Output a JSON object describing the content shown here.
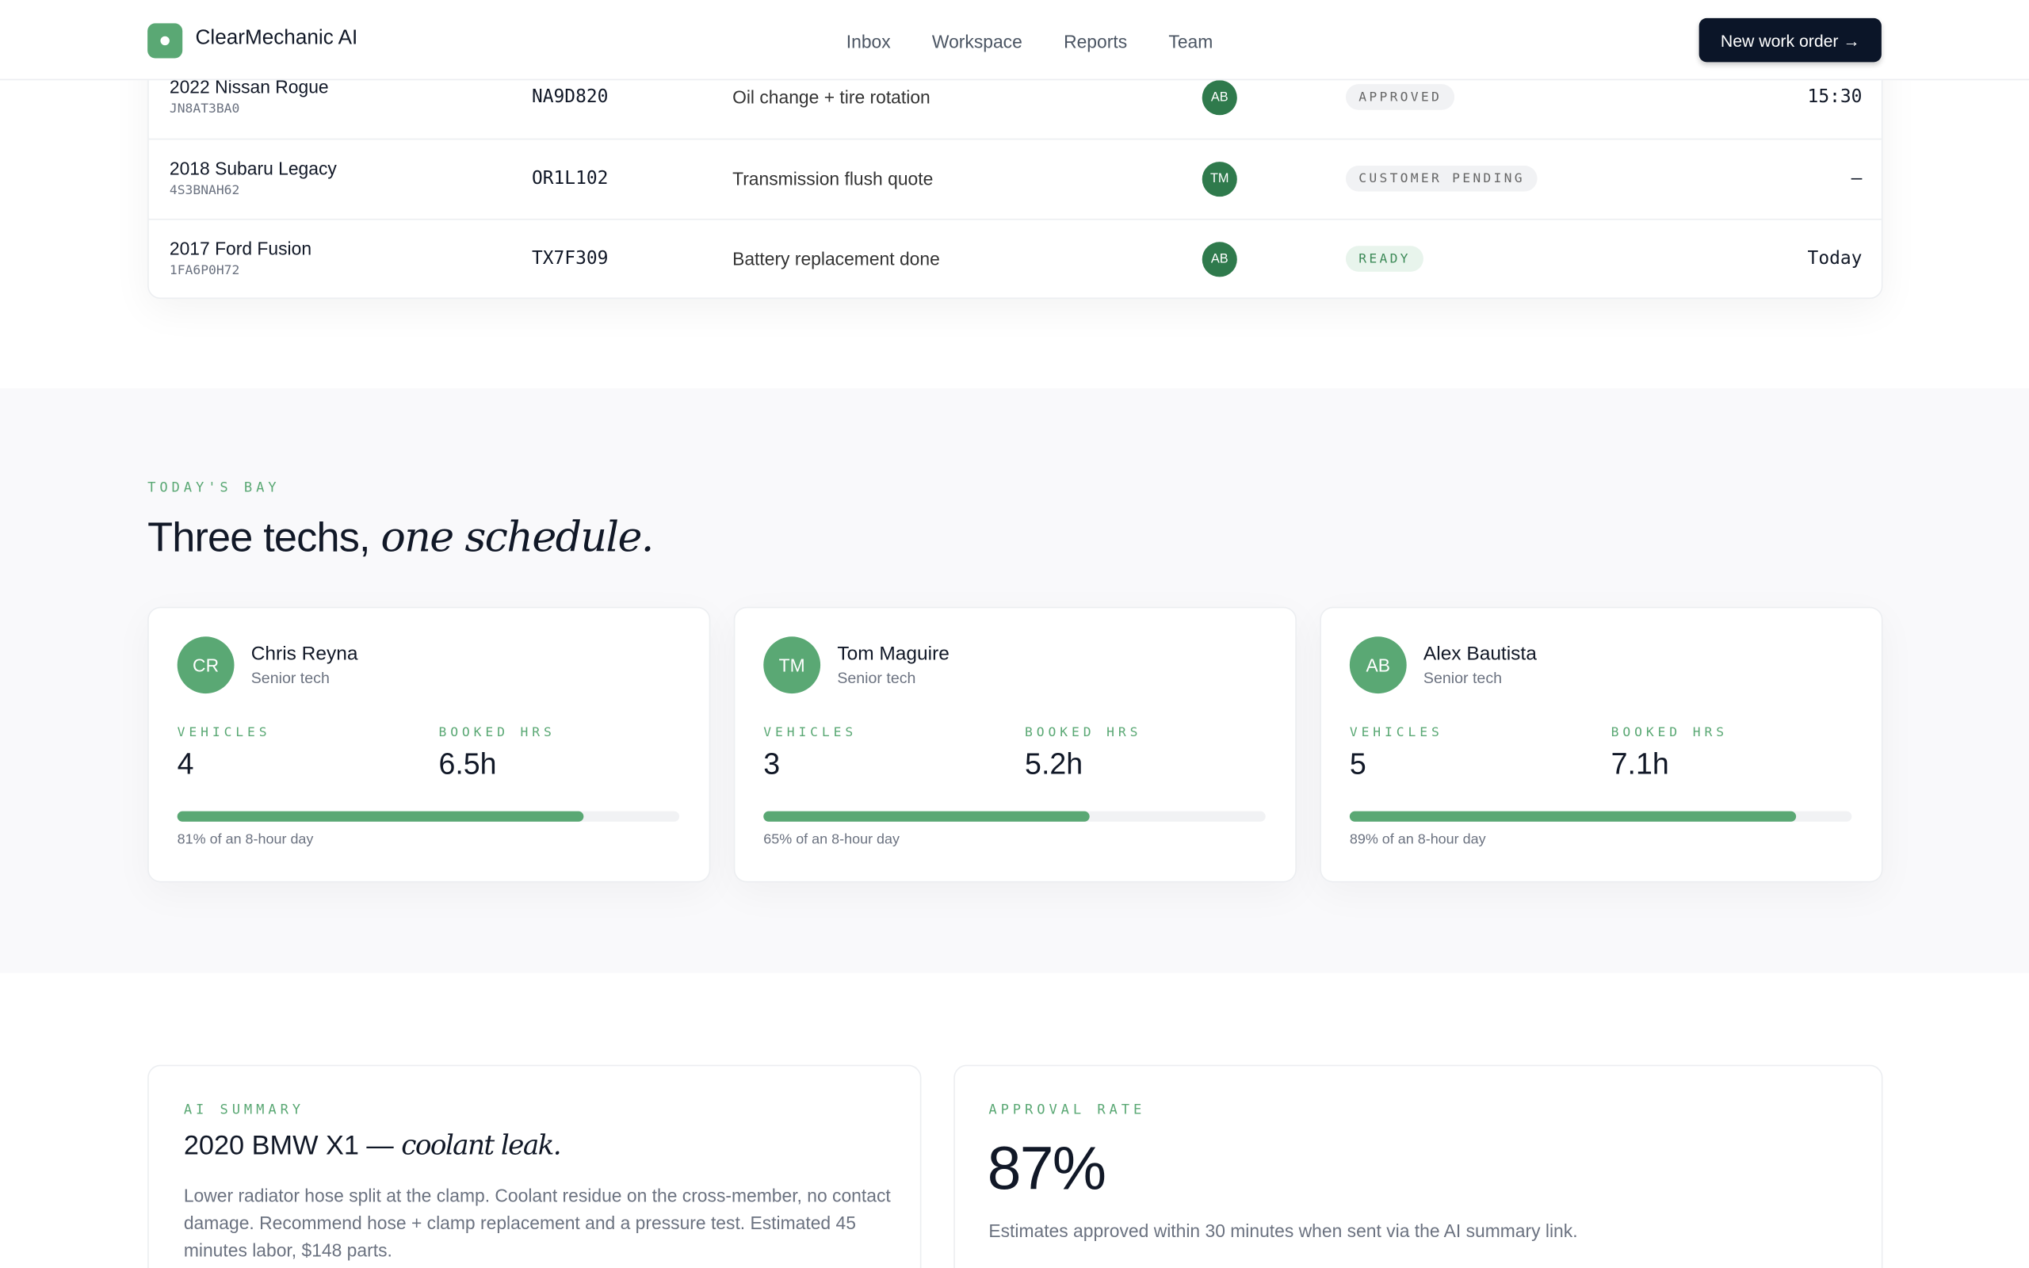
{
  "header": {
    "brand": "ClearMechanic AI",
    "nav": [
      "Inbox",
      "Workspace",
      "Reports",
      "Team"
    ],
    "cta": "New work order →"
  },
  "table": {
    "rows": [
      {
        "vehicle": "2022 Nissan Rogue",
        "vin": "JN8AT3BA0",
        "plate": "NA9D820",
        "job": "Oil change + tire rotation",
        "tech": "AB",
        "status": "APPROVED",
        "time": "15:30"
      },
      {
        "vehicle": "2018 Subaru Legacy",
        "vin": "4S3BNAH62",
        "plate": "OR1L102",
        "job": "Transmission flush quote",
        "tech": "TM",
        "status": "CUSTOMER PENDING",
        "time": "—"
      },
      {
        "vehicle": "2017 Ford Fusion",
        "vin": "1FA6P0H72",
        "plate": "TX7F309",
        "job": "Battery replacement done",
        "tech": "AB",
        "status": "READY",
        "time": "Today"
      }
    ]
  },
  "bay": {
    "eyebrow": "TODAY'S BAY",
    "title": "Three techs,",
    "title_em": "one schedule.",
    "techs": [
      {
        "initials": "CR",
        "name": "Chris Reyna",
        "role": "Senior tech",
        "vehicles_label": "VEHICLES",
        "vehicles": "4",
        "hours_label": "BOOKED HRS",
        "hours": "6.5h",
        "utilization": 81,
        "note": "81% of an 8-hour day"
      },
      {
        "initials": "TM",
        "name": "Tom Maguire",
        "role": "Senior tech",
        "vehicles_label": "VEHICLES",
        "vehicles": "3",
        "hours_label": "BOOKED HRS",
        "hours": "5.2h",
        "utilization": 65,
        "note": "65% of an 8-hour day"
      },
      {
        "initials": "AB",
        "name": "Alex Bautista",
        "role": "Senior tech",
        "vehicles_label": "VEHICLES",
        "vehicles": "5",
        "hours_label": "BOOKED HRS",
        "hours": "7.1h",
        "utilization": 89,
        "note": "89% of an 8-hour day"
      }
    ]
  },
  "summary": {
    "eyebrow": "AI SUMMARY",
    "title": "2020 BMW X1 —",
    "title_em": "coolant leak.",
    "body": "Lower radiator hose split at the clamp. Coolant residue on the cross-member, no contact damage. Recommend hose + clamp replacement and a pressure test. Estimated 45 minutes labor, $148 parts."
  },
  "approval": {
    "eyebrow": "APPROVAL RATE",
    "value": "87%",
    "description": "Estimates approved within 30 minutes when sent via the AI summary link."
  }
}
